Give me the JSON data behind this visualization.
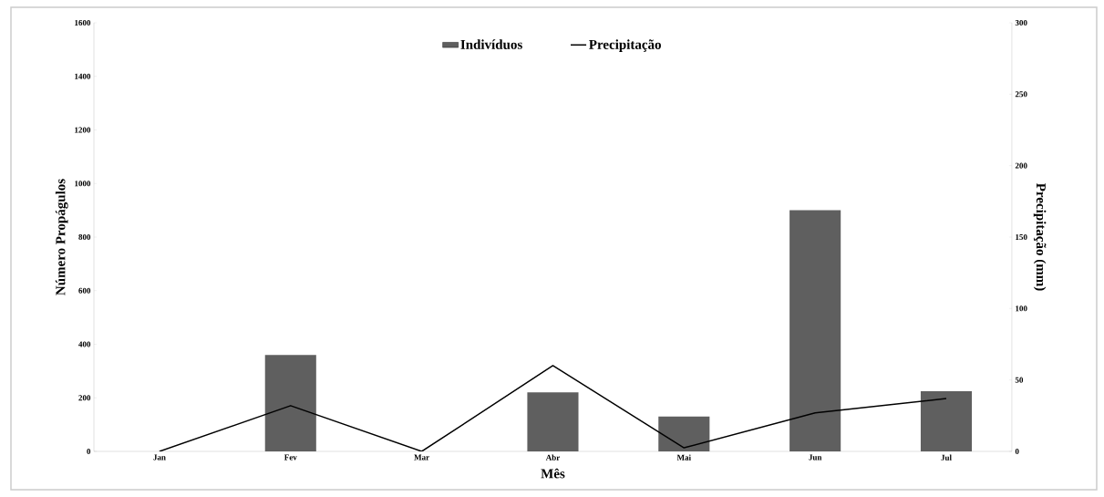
{
  "chart_data": {
    "type": "bar",
    "xlabel": "Mês",
    "ylabel": "Número Propágulos",
    "y2label": "Precipitação (mm)",
    "categories": [
      "Jan",
      "Fev",
      "Mar",
      "Abr",
      "Mai",
      "Jun",
      "Jul"
    ],
    "series": [
      {
        "name": "Indivíduos",
        "color": "#5f5f5f",
        "values": [
          0,
          360,
          0,
          220,
          130,
          900,
          225
        ]
      },
      {
        "name": "Precipitação",
        "type": "line",
        "axis": "y2",
        "color": "#000000",
        "values": [
          0,
          32,
          0,
          60,
          2.5,
          27,
          37
        ]
      }
    ],
    "ylim": [
      0,
      1600
    ],
    "yticks": [
      0,
      200,
      400,
      600,
      800,
      1000,
      1200,
      1400,
      1600
    ],
    "y2lim": [
      0,
      300
    ],
    "y2ticks": [
      0,
      50,
      100,
      150,
      200,
      250,
      300
    ],
    "legend": "top",
    "grid": false,
    "marker": "none"
  }
}
